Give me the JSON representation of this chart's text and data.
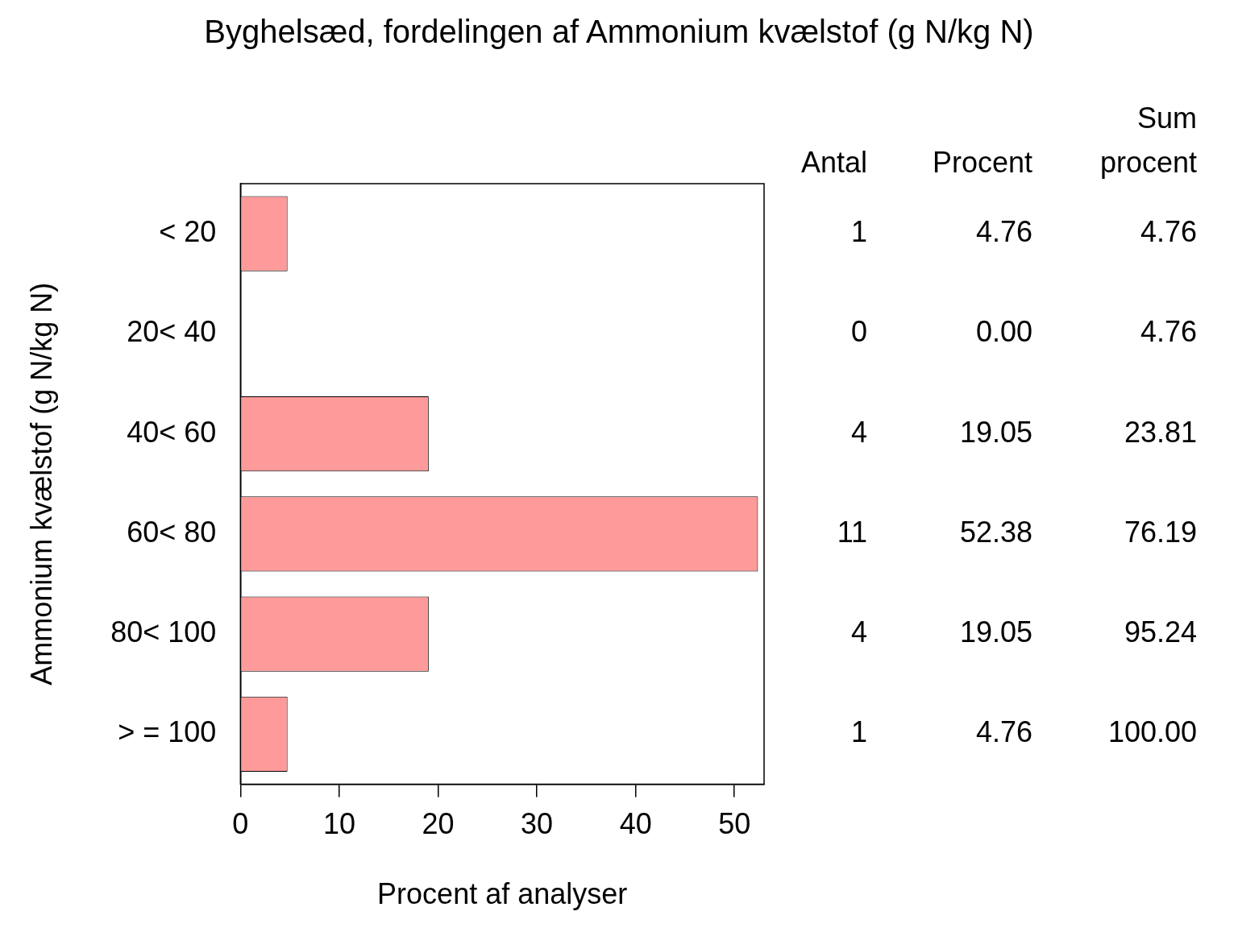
{
  "chart_data": {
    "type": "bar",
    "orientation": "horizontal",
    "title": "Byghelsæd, fordelingen af Ammonium kvælstof (g N/kg N)",
    "xlabel": "Procent af analyser",
    "ylabel": "Ammonium kvælstof (g N/kg N)",
    "categories": [
      "< 20",
      "20< 40",
      "40< 60",
      "60< 80",
      "80< 100",
      "> = 100"
    ],
    "series": [
      {
        "color": "#ff9a9a",
        "values": [
          4.76,
          0,
          19.05,
          52.38,
          19.05,
          4.76
        ],
        "value_labels": [
          "4.76",
          "0.00",
          "19.05",
          "52.38",
          "19.05",
          "4.76"
        ]
      }
    ],
    "xlim": [
      0,
      53
    ],
    "xticks": [
      0,
      10,
      20,
      30,
      40,
      50
    ],
    "grid": false,
    "legend": false,
    "annotations": [
      "Antal",
      "Procent",
      "Sum procent",
      "1",
      "4.76",
      "0",
      "4.76",
      "4",
      "23.81",
      "11",
      "76.19",
      "4",
      "95.24",
      "1",
      "100.00"
    ]
  }
}
